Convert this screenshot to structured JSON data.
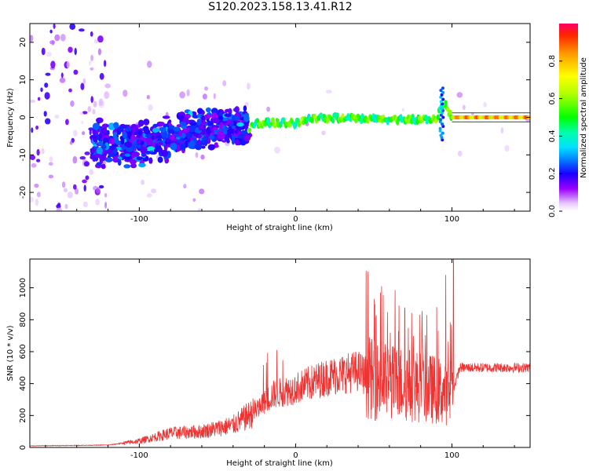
{
  "title": "S120.2023.158.13.41.R12",
  "chart_data": [
    {
      "type": "heatmap",
      "xlabel": "Height of straight line (km)",
      "ylabel": "Frequency (Hz)",
      "xlim": [
        -170,
        150
      ],
      "ylim": [
        -25,
        25
      ],
      "xticks": [
        -100,
        0,
        100
      ],
      "yticks": [
        -20,
        -10,
        0,
        10,
        20
      ],
      "colorbar": {
        "label": "Normalized spectral amplitude",
        "range": [
          0,
          1
        ],
        "ticks": [
          0.0,
          0.2,
          0.4,
          0.6,
          0.8
        ]
      },
      "ridge_frequency_hz": [
        {
          "x": -130,
          "y": -7
        },
        {
          "x": -100,
          "y": -7
        },
        {
          "x": -70,
          "y": -4
        },
        {
          "x": -40,
          "y": -2
        },
        {
          "x": -30,
          "y": -3
        },
        {
          "x": -25,
          "y": -1.5
        },
        {
          "x": 0,
          "y": -1.5
        },
        {
          "x": 10,
          "y": 0
        },
        {
          "x": 50,
          "y": -0.5
        },
        {
          "x": 90,
          "y": -0.5
        },
        {
          "x": 95,
          "y": 4
        },
        {
          "x": 100,
          "y": 0
        },
        {
          "x": 150,
          "y": 0
        }
      ]
    },
    {
      "type": "line",
      "xlabel": "Height of straight line (km)",
      "ylabel": "SNR (10 * v/v)",
      "xlim": [
        -170,
        150
      ],
      "ylim": [
        0,
        1180
      ],
      "xticks": [
        -100,
        0,
        100
      ],
      "yticks": [
        0,
        200,
        400,
        600,
        800,
        1000
      ],
      "series_color": "#ee3333",
      "envelope": [
        {
          "x": -170,
          "y": 10
        },
        {
          "x": -120,
          "y": 15
        },
        {
          "x": -100,
          "y": 40
        },
        {
          "x": -80,
          "y": 90
        },
        {
          "x": -60,
          "y": 100
        },
        {
          "x": -40,
          "y": 140
        },
        {
          "x": -25,
          "y": 230
        },
        {
          "x": -15,
          "y": 330
        },
        {
          "x": 0,
          "y": 370
        },
        {
          "x": 20,
          "y": 440
        },
        {
          "x": 40,
          "y": 480
        },
        {
          "x": 50,
          "y": 420
        },
        {
          "x": 75,
          "y": 390
        },
        {
          "x": 90,
          "y": 360
        },
        {
          "x": 100,
          "y": 330
        },
        {
          "x": 105,
          "y": 500
        },
        {
          "x": 150,
          "y": 500
        }
      ],
      "peaks": [
        {
          "x": -12,
          "y": 610
        },
        {
          "x": 55,
          "y": 1010
        },
        {
          "x": 70,
          "y": 860
        },
        {
          "x": 84,
          "y": 830
        },
        {
          "x": 96,
          "y": 1080
        },
        {
          "x": 101,
          "y": 1180
        }
      ]
    }
  ]
}
